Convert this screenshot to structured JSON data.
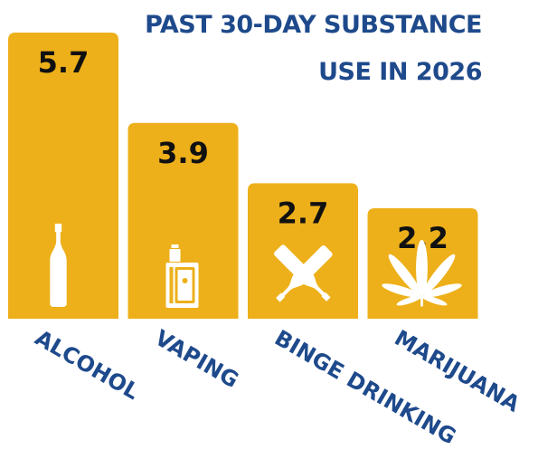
{
  "chart_data": {
    "type": "bar",
    "title_lines": [
      "PAST 30-DAY SUBSTANCE",
      "USE IN 2026"
    ],
    "categories": [
      "ALCOHOL",
      "VAPING",
      "BINGE DRINKING",
      "MARIJUANA"
    ],
    "values": [
      5.7,
      3.9,
      2.7,
      2.2
    ],
    "value_labels": [
      "5.7",
      "3.9",
      "2.7",
      "2.2"
    ],
    "icons": [
      "bottle-icon",
      "vape-icon",
      "crossed-bottles-icon",
      "cannabis-leaf-icon"
    ],
    "xlabel": "",
    "ylabel": "",
    "ylim": [
      0,
      5.7
    ],
    "grid": false,
    "legend": "none"
  },
  "colors": {
    "bar": "#EDB01A",
    "title": "#1E4A8C",
    "category_label": "#1E4A8C",
    "value_label": "#111111",
    "icon": "#ffffff"
  }
}
